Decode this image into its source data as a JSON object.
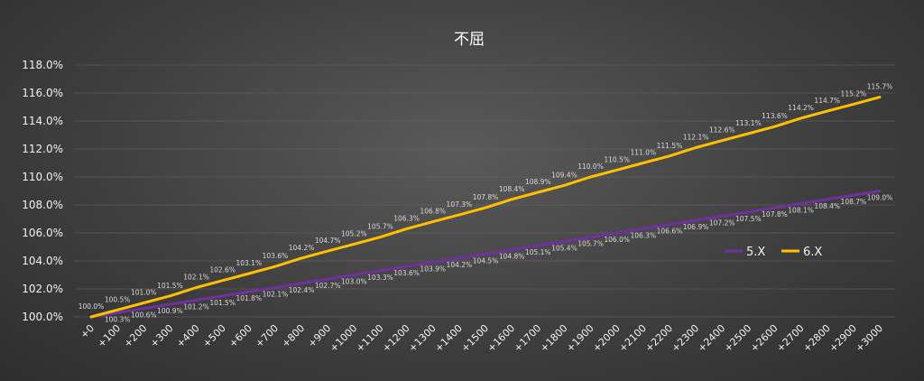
{
  "chart_data": {
    "type": "line",
    "title": "不屈",
    "xlabel": "",
    "ylabel": "",
    "ylim": [
      100.0,
      118.0
    ],
    "y_ticks": [
      "100.0%",
      "102.0%",
      "104.0%",
      "106.0%",
      "108.0%",
      "110.0%",
      "112.0%",
      "114.0%",
      "116.0%",
      "118.0%"
    ],
    "grid": "horizontal",
    "legend": "right",
    "categories": [
      "+0",
      "+100",
      "+200",
      "+300",
      "+400",
      "+500",
      "+600",
      "+700",
      "+800",
      "+900",
      "+1000",
      "+1100",
      "+1200",
      "+1300",
      "+1400",
      "+1500",
      "+1600",
      "+1700",
      "+1800",
      "+1900",
      "+2000",
      "+2100",
      "+2200",
      "+2300",
      "+2400",
      "+2500",
      "+2600",
      "+2700",
      "+2800",
      "+2900",
      "+3000"
    ],
    "series": [
      {
        "name": "5.X",
        "color": "#7030a0",
        "values": [
          100.0,
          100.3,
          100.6,
          100.9,
          101.2,
          101.5,
          101.8,
          102.1,
          102.4,
          102.7,
          103.0,
          103.3,
          103.6,
          103.9,
          104.2,
          104.5,
          104.8,
          105.1,
          105.4,
          105.7,
          106.0,
          106.3,
          106.6,
          106.9,
          107.2,
          107.5,
          107.8,
          108.1,
          108.4,
          108.7,
          109.0
        ],
        "labels": [
          "",
          "100.3%",
          "100.6%",
          "100.9%",
          "101.2%",
          "101.5%",
          "101.8%",
          "102.1%",
          "102.4%",
          "102.7%",
          "103.0%",
          "103.3%",
          "103.6%",
          "103.9%",
          "104.2%",
          "104.5%",
          "104.8%",
          "105.1%",
          "105.4%",
          "105.7%",
          "106.0%",
          "106.3%",
          "106.6%",
          "106.9%",
          "107.2%",
          "107.5%",
          "107.8%",
          "108.1%",
          "108.4%",
          "108.7%",
          "109.0%"
        ]
      },
      {
        "name": "6.X",
        "color": "#ffc000",
        "values": [
          100.0,
          100.5,
          101.0,
          101.5,
          102.1,
          102.6,
          103.1,
          103.6,
          104.2,
          104.7,
          105.2,
          105.7,
          106.3,
          106.8,
          107.3,
          107.8,
          108.4,
          108.9,
          109.4,
          110.0,
          110.5,
          111.0,
          111.5,
          112.1,
          112.6,
          113.1,
          113.6,
          114.2,
          114.7,
          115.2,
          115.7
        ],
        "labels": [
          "100.0%",
          "100.5%",
          "101.0%",
          "101.5%",
          "102.1%",
          "102.6%",
          "103.1%",
          "103.6%",
          "104.2%",
          "104.7%",
          "105.2%",
          "105.7%",
          "106.3%",
          "106.8%",
          "107.3%",
          "107.8%",
          "108.4%",
          "108.9%",
          "109.4%",
          "110.0%",
          "110.5%",
          "111.0%",
          "111.5%",
          "112.1%",
          "112.6%",
          "113.1%",
          "113.6%",
          "114.2%",
          "114.7%",
          "115.2%",
          "115.7%"
        ]
      }
    ]
  }
}
